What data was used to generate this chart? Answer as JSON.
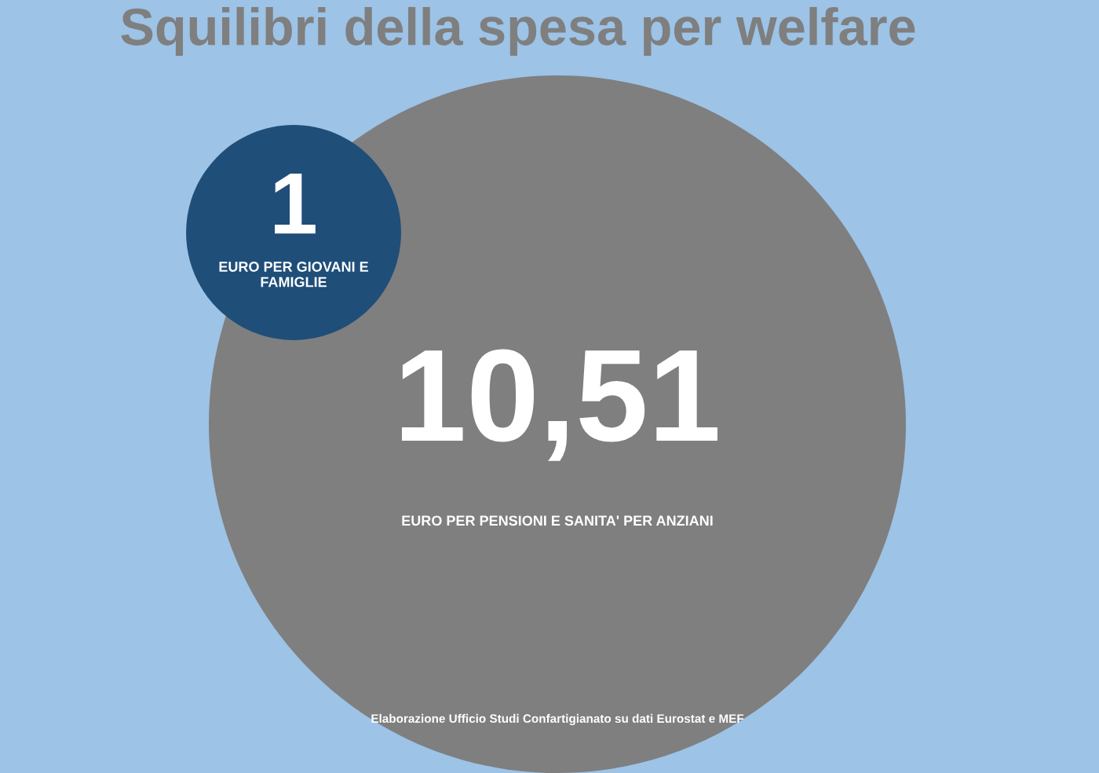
{
  "chart_data": {
    "type": "other",
    "title": "Squilibri della spesa per welfare",
    "categories": [
      "EURO PER GIOVANI E FAMIGLIE",
      "EURO PER PENSIONI E SANITA' PER ANZIANI"
    ],
    "values": [
      1,
      10.51
    ],
    "value_labels": [
      "1",
      "10,51"
    ],
    "colors": [
      "#1f4e79",
      "#7f7f7f"
    ],
    "annotations": [
      "Elaborazione Ufficio Studi Confartigianato su dati Eurostat e MEF"
    ]
  }
}
